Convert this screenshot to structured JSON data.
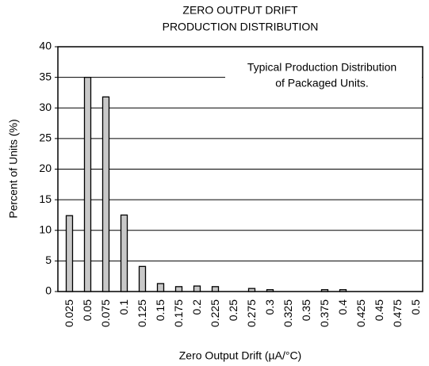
{
  "chart_data": {
    "type": "bar",
    "title": [
      "ZERO OUTPUT DRIFT",
      "PRODUCTION DISTRIBUTION"
    ],
    "annotation": [
      "Typical Production Distribution",
      "of Packaged Units."
    ],
    "xlabel": "Zero Output Drift (µA/°C)",
    "ylabel": "Percent of Units (%)",
    "categories": [
      "0.025",
      "0.05",
      "0.075",
      "0.1",
      "0.125",
      "0.15",
      "0.175",
      "0.2",
      "0.225",
      "0.25",
      "0.275",
      "0.3",
      "0.325",
      "0.35",
      "0.375",
      "0.4",
      "0.425",
      "0.45",
      "0.475",
      "0.5"
    ],
    "values": [
      12.4,
      35,
      31.8,
      12.5,
      4.1,
      1.3,
      0.8,
      0.9,
      0.8,
      0,
      0.5,
      0.3,
      0,
      0,
      0.3,
      0.3,
      0,
      0,
      0,
      0
    ],
    "color": "#c8c8c8",
    "ylim": [
      0,
      40
    ],
    "yticks": [
      0,
      5,
      10,
      15,
      20,
      25,
      30,
      35,
      40
    ],
    "grid": true
  }
}
